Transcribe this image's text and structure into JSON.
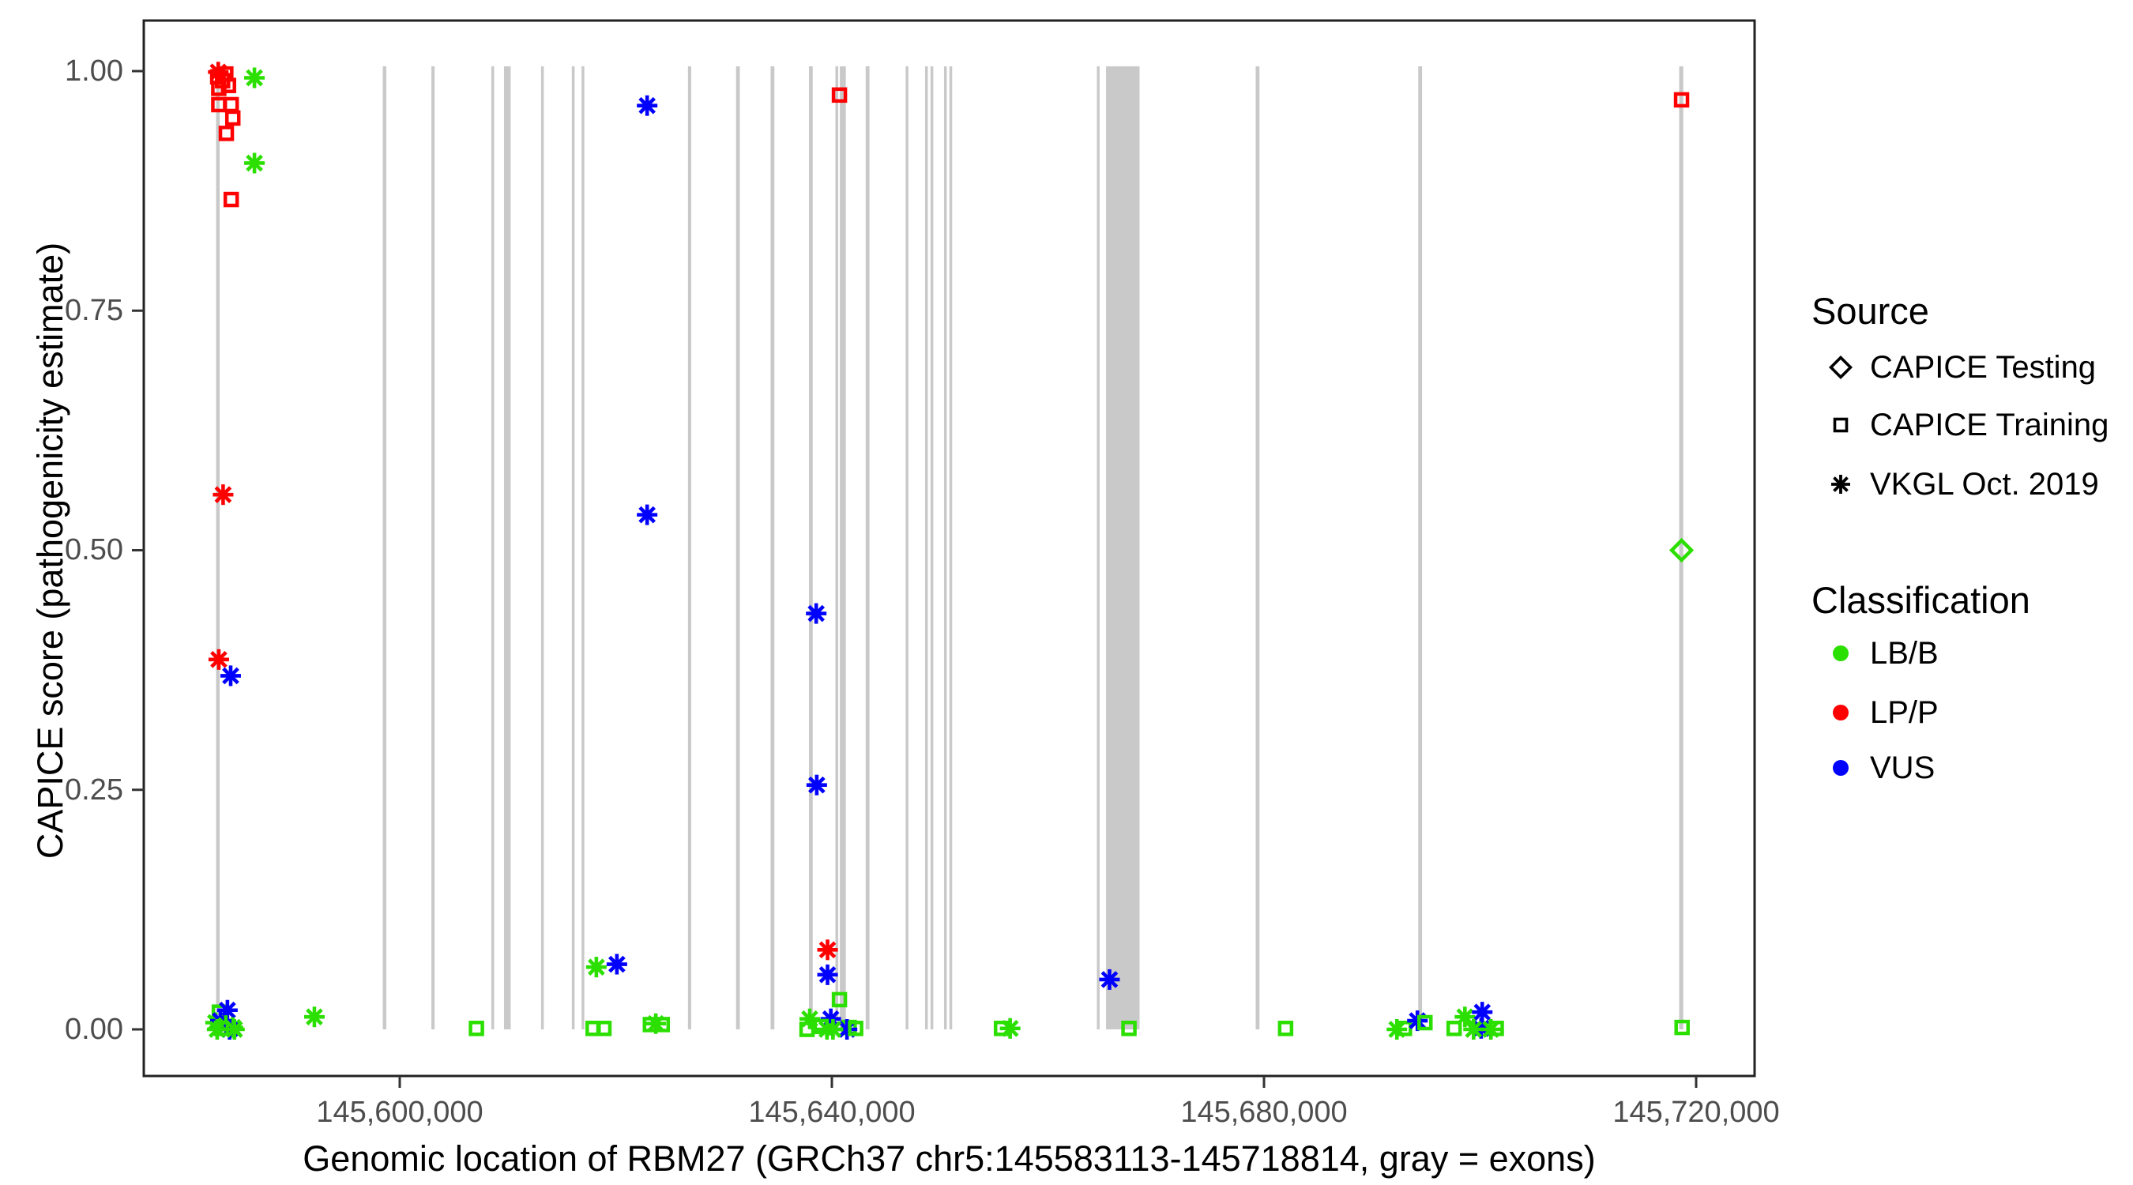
{
  "chart_data": {
    "type": "scatter",
    "title": "",
    "xlabel": "Genomic location of RBM27 (GRCh37 chr5:145583113-145718814, gray = exons)",
    "ylabel": "CAPICE score (pathogenicity estimate)",
    "xlim": [
      145576300,
      145725400
    ],
    "ylim": [
      -0.049,
      1.053
    ],
    "grid": "off",
    "x_ticks": [
      {
        "value": 145600000,
        "label": "145,600,000"
      },
      {
        "value": 145640000,
        "label": "145,640,000"
      },
      {
        "value": 145680000,
        "label": "145,680,000"
      },
      {
        "value": 145720000,
        "label": "145,720,000"
      }
    ],
    "y_ticks": [
      {
        "value": 1.0,
        "label": "1.00"
      },
      {
        "value": 0.75,
        "label": "0.75"
      },
      {
        "value": 0.5,
        "label": "0.50"
      },
      {
        "value": 0.25,
        "label": "0.25"
      },
      {
        "value": 0.0,
        "label": "0.00"
      }
    ],
    "colors": {
      "exon_gray": "#C9C9C9",
      "panel_border": "#222222",
      "tick_text": "#4d4d4d",
      "lbb_green": "#2BDF00",
      "lpp_red": "#FF0000",
      "vus_blue": "#0000FF"
    },
    "legend": {
      "source": {
        "title": "Source",
        "items": [
          {
            "label": "CAPICE Testing",
            "shape": "diamond"
          },
          {
            "label": "CAPICE Training",
            "shape": "square"
          },
          {
            "label": "VKGL Oct. 2019",
            "shape": "asterisk"
          }
        ]
      },
      "classification": {
        "title": "Classification",
        "items": [
          {
            "label": "LB/B",
            "color": "#2BDF00"
          },
          {
            "label": "LP/P",
            "color": "#FF0000"
          },
          {
            "label": "VUS",
            "color": "#0000FF"
          }
        ]
      }
    },
    "classification_colors": {
      "LB/B": "#2BDF00",
      "LP/P": "#FF0000",
      "VUS": "#0000FF"
    },
    "source_shapes": {
      "CAPICE Testing": "diamond",
      "CAPICE Training": "square",
      "VKGL Oct. 2019": "asterisk"
    },
    "exon_band_top_score": 1.005,
    "exons": [
      [
        145583000,
        145583330
      ],
      [
        145598430,
        145598760
      ],
      [
        145602930,
        145603230
      ],
      [
        145608480,
        145608730
      ],
      [
        145609650,
        145610270
      ],
      [
        145613080,
        145613330
      ],
      [
        145615930,
        145616180
      ],
      [
        145616830,
        145617080
      ],
      [
        145626680,
        145626980
      ],
      [
        145631130,
        145631480
      ],
      [
        145634330,
        145634680
      ],
      [
        145637880,
        145638230
      ],
      [
        145640330,
        145640580
      ],
      [
        145640740,
        145641290
      ],
      [
        145643130,
        145643480
      ],
      [
        145646830,
        145647080
      ],
      [
        145648630,
        145648880
      ],
      [
        145649130,
        145649380
      ],
      [
        145650380,
        145650630
      ],
      [
        145650880,
        145651130
      ],
      [
        145664530,
        145664780
      ],
      [
        145665380,
        145668480
      ],
      [
        145679230,
        145679580
      ],
      [
        145694280,
        145694630
      ],
      [
        145718430,
        145718810
      ]
    ],
    "points": [
      {
        "x": 145583200,
        "y": 0.999,
        "source": "VKGL Oct. 2019",
        "classification": "LP/P"
      },
      {
        "x": 145583150,
        "y": 0.994,
        "source": "CAPICE Training",
        "classification": "LP/P"
      },
      {
        "x": 145583900,
        "y": 0.997,
        "source": "CAPICE Training",
        "classification": "LP/P"
      },
      {
        "x": 145584150,
        "y": 0.985,
        "source": "CAPICE Training",
        "classification": "LP/P"
      },
      {
        "x": 145583250,
        "y": 0.982,
        "source": "CAPICE Training",
        "classification": "LP/P"
      },
      {
        "x": 145583600,
        "y": 0.99,
        "source": "CAPICE Training",
        "classification": "LP/P"
      },
      {
        "x": 145583250,
        "y": 0.965,
        "source": "CAPICE Training",
        "classification": "LP/P"
      },
      {
        "x": 145584400,
        "y": 0.965,
        "source": "CAPICE Training",
        "classification": "LP/P"
      },
      {
        "x": 145584550,
        "y": 0.951,
        "source": "CAPICE Training",
        "classification": "LP/P"
      },
      {
        "x": 145583950,
        "y": 0.935,
        "source": "CAPICE Training",
        "classification": "LP/P"
      },
      {
        "x": 145586550,
        "y": 0.993,
        "source": "VKGL Oct. 2019",
        "classification": "LB/B"
      },
      {
        "x": 145586550,
        "y": 0.904,
        "source": "VKGL Oct. 2019",
        "classification": "LB/B"
      },
      {
        "x": 145584400,
        "y": 0.866,
        "source": "CAPICE Training",
        "classification": "LP/P"
      },
      {
        "x": 145583650,
        "y": 0.558,
        "source": "VKGL Oct. 2019",
        "classification": "LP/P"
      },
      {
        "x": 145583250,
        "y": 0.386,
        "source": "VKGL Oct. 2019",
        "classification": "LP/P"
      },
      {
        "x": 145584350,
        "y": 0.369,
        "source": "VKGL Oct. 2019",
        "classification": "VUS"
      },
      {
        "x": 145583300,
        "y": 0.018,
        "source": "CAPICE Training",
        "classification": "LB/B"
      },
      {
        "x": 145584050,
        "y": 0.02,
        "source": "VKGL Oct. 2019",
        "classification": "VUS"
      },
      {
        "x": 145582950,
        "y": 0.007,
        "source": "VKGL Oct. 2019",
        "classification": "LB/B"
      },
      {
        "x": 145583400,
        "y": 0.009,
        "source": "VKGL Oct. 2019",
        "classification": "VUS"
      },
      {
        "x": 145583900,
        "y": 0.004,
        "source": "VKGL Oct. 2019",
        "classification": "LB/B"
      },
      {
        "x": 145584550,
        "y": 0.002,
        "source": "VKGL Oct. 2019",
        "classification": "LB/B"
      },
      {
        "x": 145584250,
        "y": 0.0,
        "source": "VKGL Oct. 2019",
        "classification": "VUS"
      },
      {
        "x": 145583500,
        "y": 0.001,
        "source": "CAPICE Training",
        "classification": "LB/B"
      },
      {
        "x": 145583100,
        "y": 0.0,
        "source": "VKGL Oct. 2019",
        "classification": "LB/B"
      },
      {
        "x": 145584700,
        "y": 0.0,
        "source": "VKGL Oct. 2019",
        "classification": "LB/B"
      },
      {
        "x": 145592100,
        "y": 0.013,
        "source": "VKGL Oct. 2019",
        "classification": "LB/B"
      },
      {
        "x": 145607100,
        "y": 0.001,
        "source": "CAPICE Training",
        "classification": "LB/B"
      },
      {
        "x": 145617900,
        "y": 0.001,
        "source": "CAPICE Training",
        "classification": "LB/B"
      },
      {
        "x": 145618900,
        "y": 0.001,
        "source": "CAPICE Training",
        "classification": "LB/B"
      },
      {
        "x": 145618200,
        "y": 0.065,
        "source": "VKGL Oct. 2019",
        "classification": "LB/B"
      },
      {
        "x": 145620100,
        "y": 0.068,
        "source": "VKGL Oct. 2019",
        "classification": "VUS"
      },
      {
        "x": 145622900,
        "y": 0.964,
        "source": "VKGL Oct. 2019",
        "classification": "VUS"
      },
      {
        "x": 145622900,
        "y": 0.537,
        "source": "VKGL Oct. 2019",
        "classification": "VUS"
      },
      {
        "x": 145623200,
        "y": 0.005,
        "source": "CAPICE Training",
        "classification": "LB/B"
      },
      {
        "x": 145624300,
        "y": 0.005,
        "source": "CAPICE Training",
        "classification": "LB/B"
      },
      {
        "x": 145623700,
        "y": 0.006,
        "source": "VKGL Oct. 2019",
        "classification": "LB/B"
      },
      {
        "x": 145638550,
        "y": 0.434,
        "source": "VKGL Oct. 2019",
        "classification": "VUS"
      },
      {
        "x": 145638600,
        "y": 0.255,
        "source": "VKGL Oct. 2019",
        "classification": "VUS"
      },
      {
        "x": 145640700,
        "y": 0.975,
        "source": "CAPICE Training",
        "classification": "LP/P"
      },
      {
        "x": 145639600,
        "y": 0.083,
        "source": "VKGL Oct. 2019",
        "classification": "LP/P"
      },
      {
        "x": 145639600,
        "y": 0.057,
        "source": "VKGL Oct. 2019",
        "classification": "VUS"
      },
      {
        "x": 145640700,
        "y": 0.031,
        "source": "CAPICE Training",
        "classification": "LB/B"
      },
      {
        "x": 145637950,
        "y": 0.011,
        "source": "VKGL Oct. 2019",
        "classification": "LB/B"
      },
      {
        "x": 145639900,
        "y": 0.011,
        "source": "VKGL Oct. 2019",
        "classification": "VUS"
      },
      {
        "x": 145639000,
        "y": 0.003,
        "source": "CAPICE Training",
        "classification": "LB/B"
      },
      {
        "x": 145641600,
        "y": 0.002,
        "source": "CAPICE Training",
        "classification": "LB/B"
      },
      {
        "x": 145641400,
        "y": 0.0,
        "source": "VKGL Oct. 2019",
        "classification": "VUS"
      },
      {
        "x": 145639550,
        "y": 0.0,
        "source": "VKGL Oct. 2019",
        "classification": "LB/B"
      },
      {
        "x": 145637700,
        "y": 0.0,
        "source": "CAPICE Training",
        "classification": "LB/B"
      },
      {
        "x": 145642200,
        "y": 0.001,
        "source": "CAPICE Training",
        "classification": "LB/B"
      },
      {
        "x": 145640100,
        "y": 0.0,
        "source": "VKGL Oct. 2019",
        "classification": "LB/B"
      },
      {
        "x": 145655700,
        "y": 0.001,
        "source": "CAPICE Training",
        "classification": "LB/B"
      },
      {
        "x": 145656500,
        "y": 0.001,
        "source": "VKGL Oct. 2019",
        "classification": "LB/B"
      },
      {
        "x": 145665700,
        "y": 0.052,
        "source": "VKGL Oct. 2019",
        "classification": "VUS"
      },
      {
        "x": 145667500,
        "y": 0.001,
        "source": "CAPICE Training",
        "classification": "LB/B"
      },
      {
        "x": 145682000,
        "y": 0.001,
        "source": "CAPICE Training",
        "classification": "LB/B"
      },
      {
        "x": 145692300,
        "y": 0.0,
        "source": "VKGL Oct. 2019",
        "classification": "LB/B"
      },
      {
        "x": 145693000,
        "y": 0.001,
        "source": "CAPICE Training",
        "classification": "LB/B"
      },
      {
        "x": 145694200,
        "y": 0.009,
        "source": "VKGL Oct. 2019",
        "classification": "VUS"
      },
      {
        "x": 145694900,
        "y": 0.007,
        "source": "CAPICE Training",
        "classification": "LB/B"
      },
      {
        "x": 145697600,
        "y": 0.001,
        "source": "CAPICE Training",
        "classification": "LB/B"
      },
      {
        "x": 145698600,
        "y": 0.013,
        "source": "VKGL Oct. 2019",
        "classification": "LB/B"
      },
      {
        "x": 145700200,
        "y": 0.018,
        "source": "VKGL Oct. 2019",
        "classification": "VUS"
      },
      {
        "x": 145700100,
        "y": 0.001,
        "source": "VKGL Oct. 2019",
        "classification": "VUS"
      },
      {
        "x": 145699400,
        "y": 0.0,
        "source": "VKGL Oct. 2019",
        "classification": "LB/B"
      },
      {
        "x": 145701500,
        "y": 0.001,
        "source": "CAPICE Training",
        "classification": "LB/B"
      },
      {
        "x": 145701000,
        "y": 0.0,
        "source": "VKGL Oct. 2019",
        "classification": "LB/B"
      },
      {
        "x": 145718650,
        "y": 0.97,
        "source": "CAPICE Training",
        "classification": "LP/P"
      },
      {
        "x": 145718650,
        "y": 0.5,
        "source": "CAPICE Testing",
        "classification": "LB/B"
      },
      {
        "x": 145718700,
        "y": 0.002,
        "source": "CAPICE Training",
        "classification": "LB/B"
      }
    ]
  }
}
